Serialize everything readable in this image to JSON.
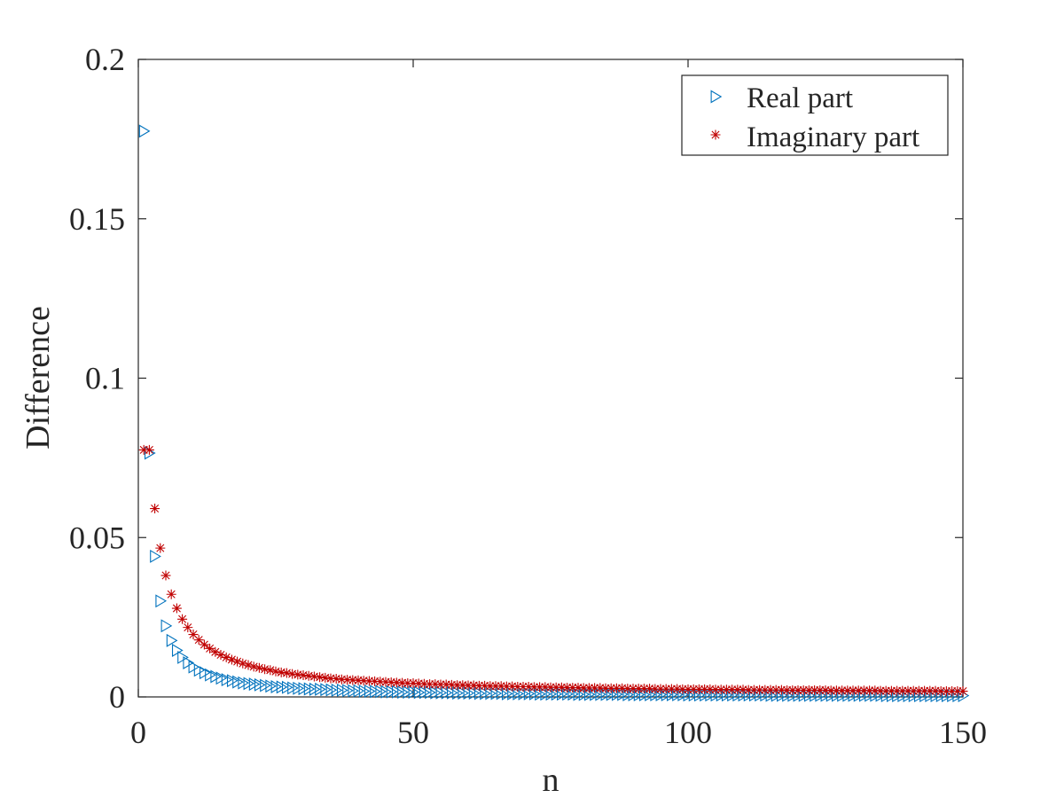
{
  "chart_data": {
    "type": "scatter",
    "xlabel": "n",
    "ylabel": "Difference",
    "xlim": [
      0,
      150
    ],
    "ylim": [
      0,
      0.2
    ],
    "xticks": [
      "0",
      "50",
      "100",
      "150"
    ],
    "yticks": [
      "0",
      "0.05",
      "0.1",
      "0.15",
      "0.2"
    ],
    "grid": false,
    "legend_position": "top-right",
    "x": [
      1,
      2,
      3,
      4,
      5,
      6,
      7,
      8,
      9,
      10,
      11,
      12,
      13,
      14,
      15,
      16,
      17,
      18,
      19,
      20,
      21,
      22,
      23,
      24,
      25,
      26,
      27,
      28,
      29,
      30,
      31,
      32,
      33,
      34,
      35,
      36,
      37,
      38,
      39,
      40,
      41,
      42,
      43,
      44,
      45,
      46,
      47,
      48,
      49,
      50,
      51,
      52,
      53,
      54,
      55,
      56,
      57,
      58,
      59,
      60,
      61,
      62,
      63,
      64,
      65,
      66,
      67,
      68,
      69,
      70,
      71,
      72,
      73,
      74,
      75,
      76,
      77,
      78,
      79,
      80,
      81,
      82,
      83,
      84,
      85,
      86,
      87,
      88,
      89,
      90,
      91,
      92,
      93,
      94,
      95,
      96,
      97,
      98,
      99,
      100,
      101,
      102,
      103,
      104,
      105,
      106,
      107,
      108,
      109,
      110,
      111,
      112,
      113,
      114,
      115,
      116,
      117,
      118,
      119,
      120,
      121,
      122,
      123,
      124,
      125,
      126,
      127,
      128,
      129,
      130,
      131,
      132,
      133,
      134,
      135,
      136,
      137,
      138,
      139,
      140,
      141,
      142,
      143,
      144,
      145,
      146,
      147,
      148,
      149,
      150
    ],
    "series": [
      {
        "name": "Real part",
        "marker": "triangle-right",
        "color": "#0072BD",
        "y": [
          0.1775,
          0.0765,
          0.0441,
          0.0301,
          0.0223,
          0.0177,
          0.0146,
          0.0124,
          0.0107,
          0.0094,
          0.0084,
          0.0076,
          0.0069,
          0.0064,
          0.0059,
          0.0054,
          0.0051,
          0.0047,
          0.0044,
          0.0042,
          0.004,
          0.0038,
          0.0036,
          0.0034,
          0.0032,
          0.0031,
          0.003,
          0.0028,
          0.0027,
          0.0026,
          0.0025,
          0.0024,
          0.0024,
          0.0023,
          0.0022,
          0.0021,
          0.0021,
          0.002,
          0.0019,
          0.0019,
          0.0018,
          0.0018,
          0.0017,
          0.0017,
          0.0016,
          0.0016,
          0.0016,
          0.0015,
          0.0015,
          0.0015,
          0.0014,
          0.0014,
          0.0014,
          0.0013,
          0.0013,
          0.0013,
          0.0013,
          0.0012,
          0.0012,
          0.0012,
          0.0012,
          0.0011,
          0.0011,
          0.0011,
          0.0011,
          0.0011,
          0.001,
          0.001,
          0.001,
          0.001,
          0.001,
          0.001,
          0.0009,
          0.0009,
          0.0009,
          0.0009,
          0.0009,
          0.0009,
          0.0009,
          0.0008,
          0.0008,
          0.0008,
          0.0008,
          0.0008,
          0.0008,
          0.0008,
          0.0008,
          0.0008,
          0.0007,
          0.0007,
          0.0007,
          0.0007,
          0.0007,
          0.0007,
          0.0007,
          0.0007,
          0.0007,
          0.0007,
          0.0007,
          0.0006,
          0.0006,
          0.0006,
          0.0006,
          0.0006,
          0.0006,
          0.0006,
          0.0006,
          0.0006,
          0.0006,
          0.0006,
          0.0006,
          0.0006,
          0.0006,
          0.0006,
          0.0005,
          0.0005,
          0.0005,
          0.0005,
          0.0005,
          0.0005,
          0.0005,
          0.0005,
          0.0005,
          0.0005,
          0.0005,
          0.0005,
          0.0005,
          0.0005,
          0.0005,
          0.0005,
          0.0005,
          0.0005,
          0.0005,
          0.0005,
          0.0005,
          0.0004,
          0.0004,
          0.0004,
          0.0004,
          0.0004,
          0.0004,
          0.0004,
          0.0004,
          0.0004,
          0.0004,
          0.0004,
          0.0004,
          0.0004,
          0.0004,
          0.0004
        ]
      },
      {
        "name": "Imaginary part",
        "marker": "asterisk",
        "color": "#C00000",
        "y": [
          0.0775,
          0.0775,
          0.0591,
          0.0467,
          0.0381,
          0.0322,
          0.0278,
          0.0244,
          0.0218,
          0.0196,
          0.0179,
          0.0164,
          0.0152,
          0.0141,
          0.0132,
          0.0124,
          0.0117,
          0.0111,
          0.0105,
          0.01,
          0.0095,
          0.0091,
          0.0087,
          0.0084,
          0.008,
          0.0077,
          0.0075,
          0.0072,
          0.007,
          0.0068,
          0.0066,
          0.0064,
          0.0062,
          0.006,
          0.0058,
          0.0057,
          0.0055,
          0.0054,
          0.0053,
          0.0052,
          0.0051,
          0.005,
          0.0049,
          0.0048,
          0.0047,
          0.0046,
          0.0045,
          0.0044,
          0.0043,
          0.0043,
          0.0042,
          0.0041,
          0.004,
          0.004,
          0.0039,
          0.0039,
          0.0038,
          0.0037,
          0.0037,
          0.0036,
          0.0036,
          0.0035,
          0.0035,
          0.0034,
          0.0034,
          0.0034,
          0.0033,
          0.0033,
          0.0032,
          0.0032,
          0.0032,
          0.0031,
          0.0031,
          0.0031,
          0.003,
          0.003,
          0.003,
          0.0029,
          0.0029,
          0.0029,
          0.0028,
          0.0028,
          0.0028,
          0.0028,
          0.0027,
          0.0027,
          0.0027,
          0.0027,
          0.0026,
          0.0026,
          0.0026,
          0.0026,
          0.0026,
          0.0025,
          0.0025,
          0.0025,
          0.0025,
          0.0025,
          0.0024,
          0.0024,
          0.0024,
          0.0024,
          0.0024,
          0.0024,
          0.0023,
          0.0023,
          0.0023,
          0.0023,
          0.0023,
          0.0023,
          0.0022,
          0.0022,
          0.0022,
          0.0022,
          0.0022,
          0.0022,
          0.0022,
          0.0021,
          0.0021,
          0.0021,
          0.0021,
          0.0021,
          0.0021,
          0.0021,
          0.0021,
          0.002,
          0.002,
          0.002,
          0.002,
          0.002,
          0.002,
          0.002,
          0.002,
          0.002,
          0.0019,
          0.0019,
          0.0019,
          0.0019,
          0.0019,
          0.0019,
          0.0019,
          0.0019,
          0.0019,
          0.0019,
          0.0019,
          0.0018,
          0.0018,
          0.0018,
          0.0018,
          0.0018
        ]
      }
    ]
  }
}
